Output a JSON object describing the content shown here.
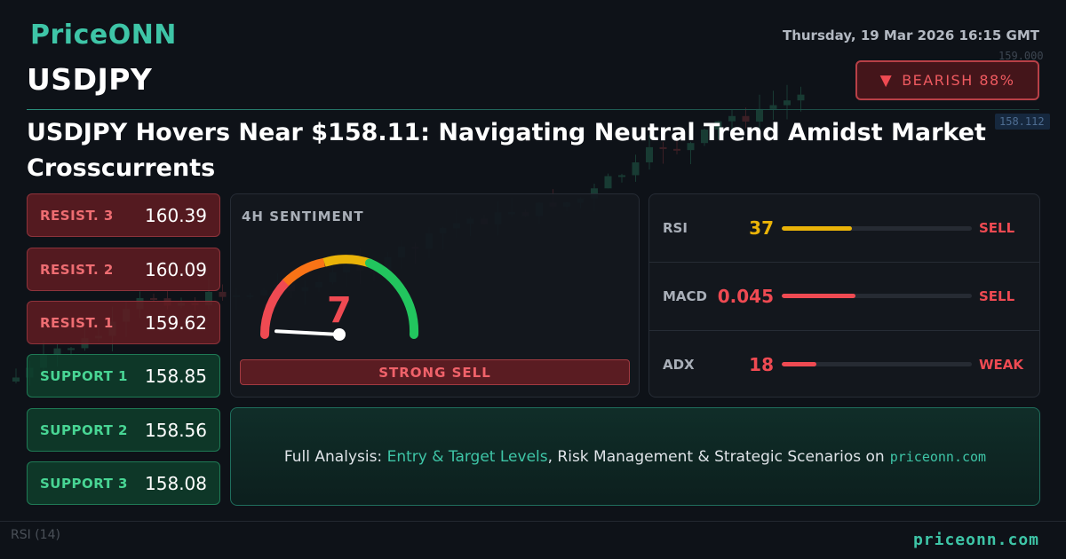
{
  "brand": {
    "name": "PriceONN"
  },
  "header": {
    "datetime": "Thursday, 19 Mar 2026 16:15 GMT",
    "symbol": "USDJPY",
    "bias": {
      "icon": "triangle-down-icon",
      "label": "BEARISH 88%",
      "color": "#ef4a52"
    }
  },
  "headline": "USDJPY Hovers Near $158.11: Navigating Neutral Trend Amidst Market Crosscurrents",
  "levels": [
    {
      "label": "RESIST. 3",
      "value": "160.39",
      "kind": "resistance"
    },
    {
      "label": "RESIST. 2",
      "value": "160.09",
      "kind": "resistance"
    },
    {
      "label": "RESIST. 1",
      "value": "159.62",
      "kind": "resistance"
    },
    {
      "label": "SUPPORT 1",
      "value": "158.85",
      "kind": "support"
    },
    {
      "label": "SUPPORT 2",
      "value": "158.56",
      "kind": "support"
    },
    {
      "label": "SUPPORT 3",
      "value": "158.08",
      "kind": "support"
    }
  ],
  "sentiment": {
    "title": "4H SENTIMENT",
    "score": "7",
    "score_value": 7,
    "score_max": 100,
    "label": "STRONG SELL",
    "colors": {
      "sell": "#ef4a52",
      "mid": "#eab308",
      "buy": "#22c55e"
    }
  },
  "indicators": [
    {
      "name": "RSI",
      "value": "37",
      "level": 0.37,
      "signal": "SELL",
      "value_color": "#eab308",
      "bar_color": "#eab308",
      "signal_color": "#ef4a52"
    },
    {
      "name": "MACD",
      "value": "0.045",
      "level": 0.39,
      "signal": "SELL",
      "value_color": "#ef4a52",
      "bar_color": "#ef4a52",
      "signal_color": "#ef4a52"
    },
    {
      "name": "ADX",
      "value": "18",
      "level": 0.18,
      "signal": "WEAK",
      "value_color": "#ef4a52",
      "bar_color": "#ef4a52",
      "signal_color": "#ef4a52"
    }
  ],
  "cta": {
    "prefix": "Full Analysis:",
    "highlight": "Entry & Target Levels",
    "suffix": ", Risk Management & Strategic Scenarios on",
    "site": "priceonn.com"
  },
  "background_chart": {
    "price_labels": [
      "159.000",
      "158.112"
    ],
    "indicator_label": "RSI",
    "indicator_period": "(14)"
  },
  "footer": {
    "site": "priceonn.com"
  }
}
